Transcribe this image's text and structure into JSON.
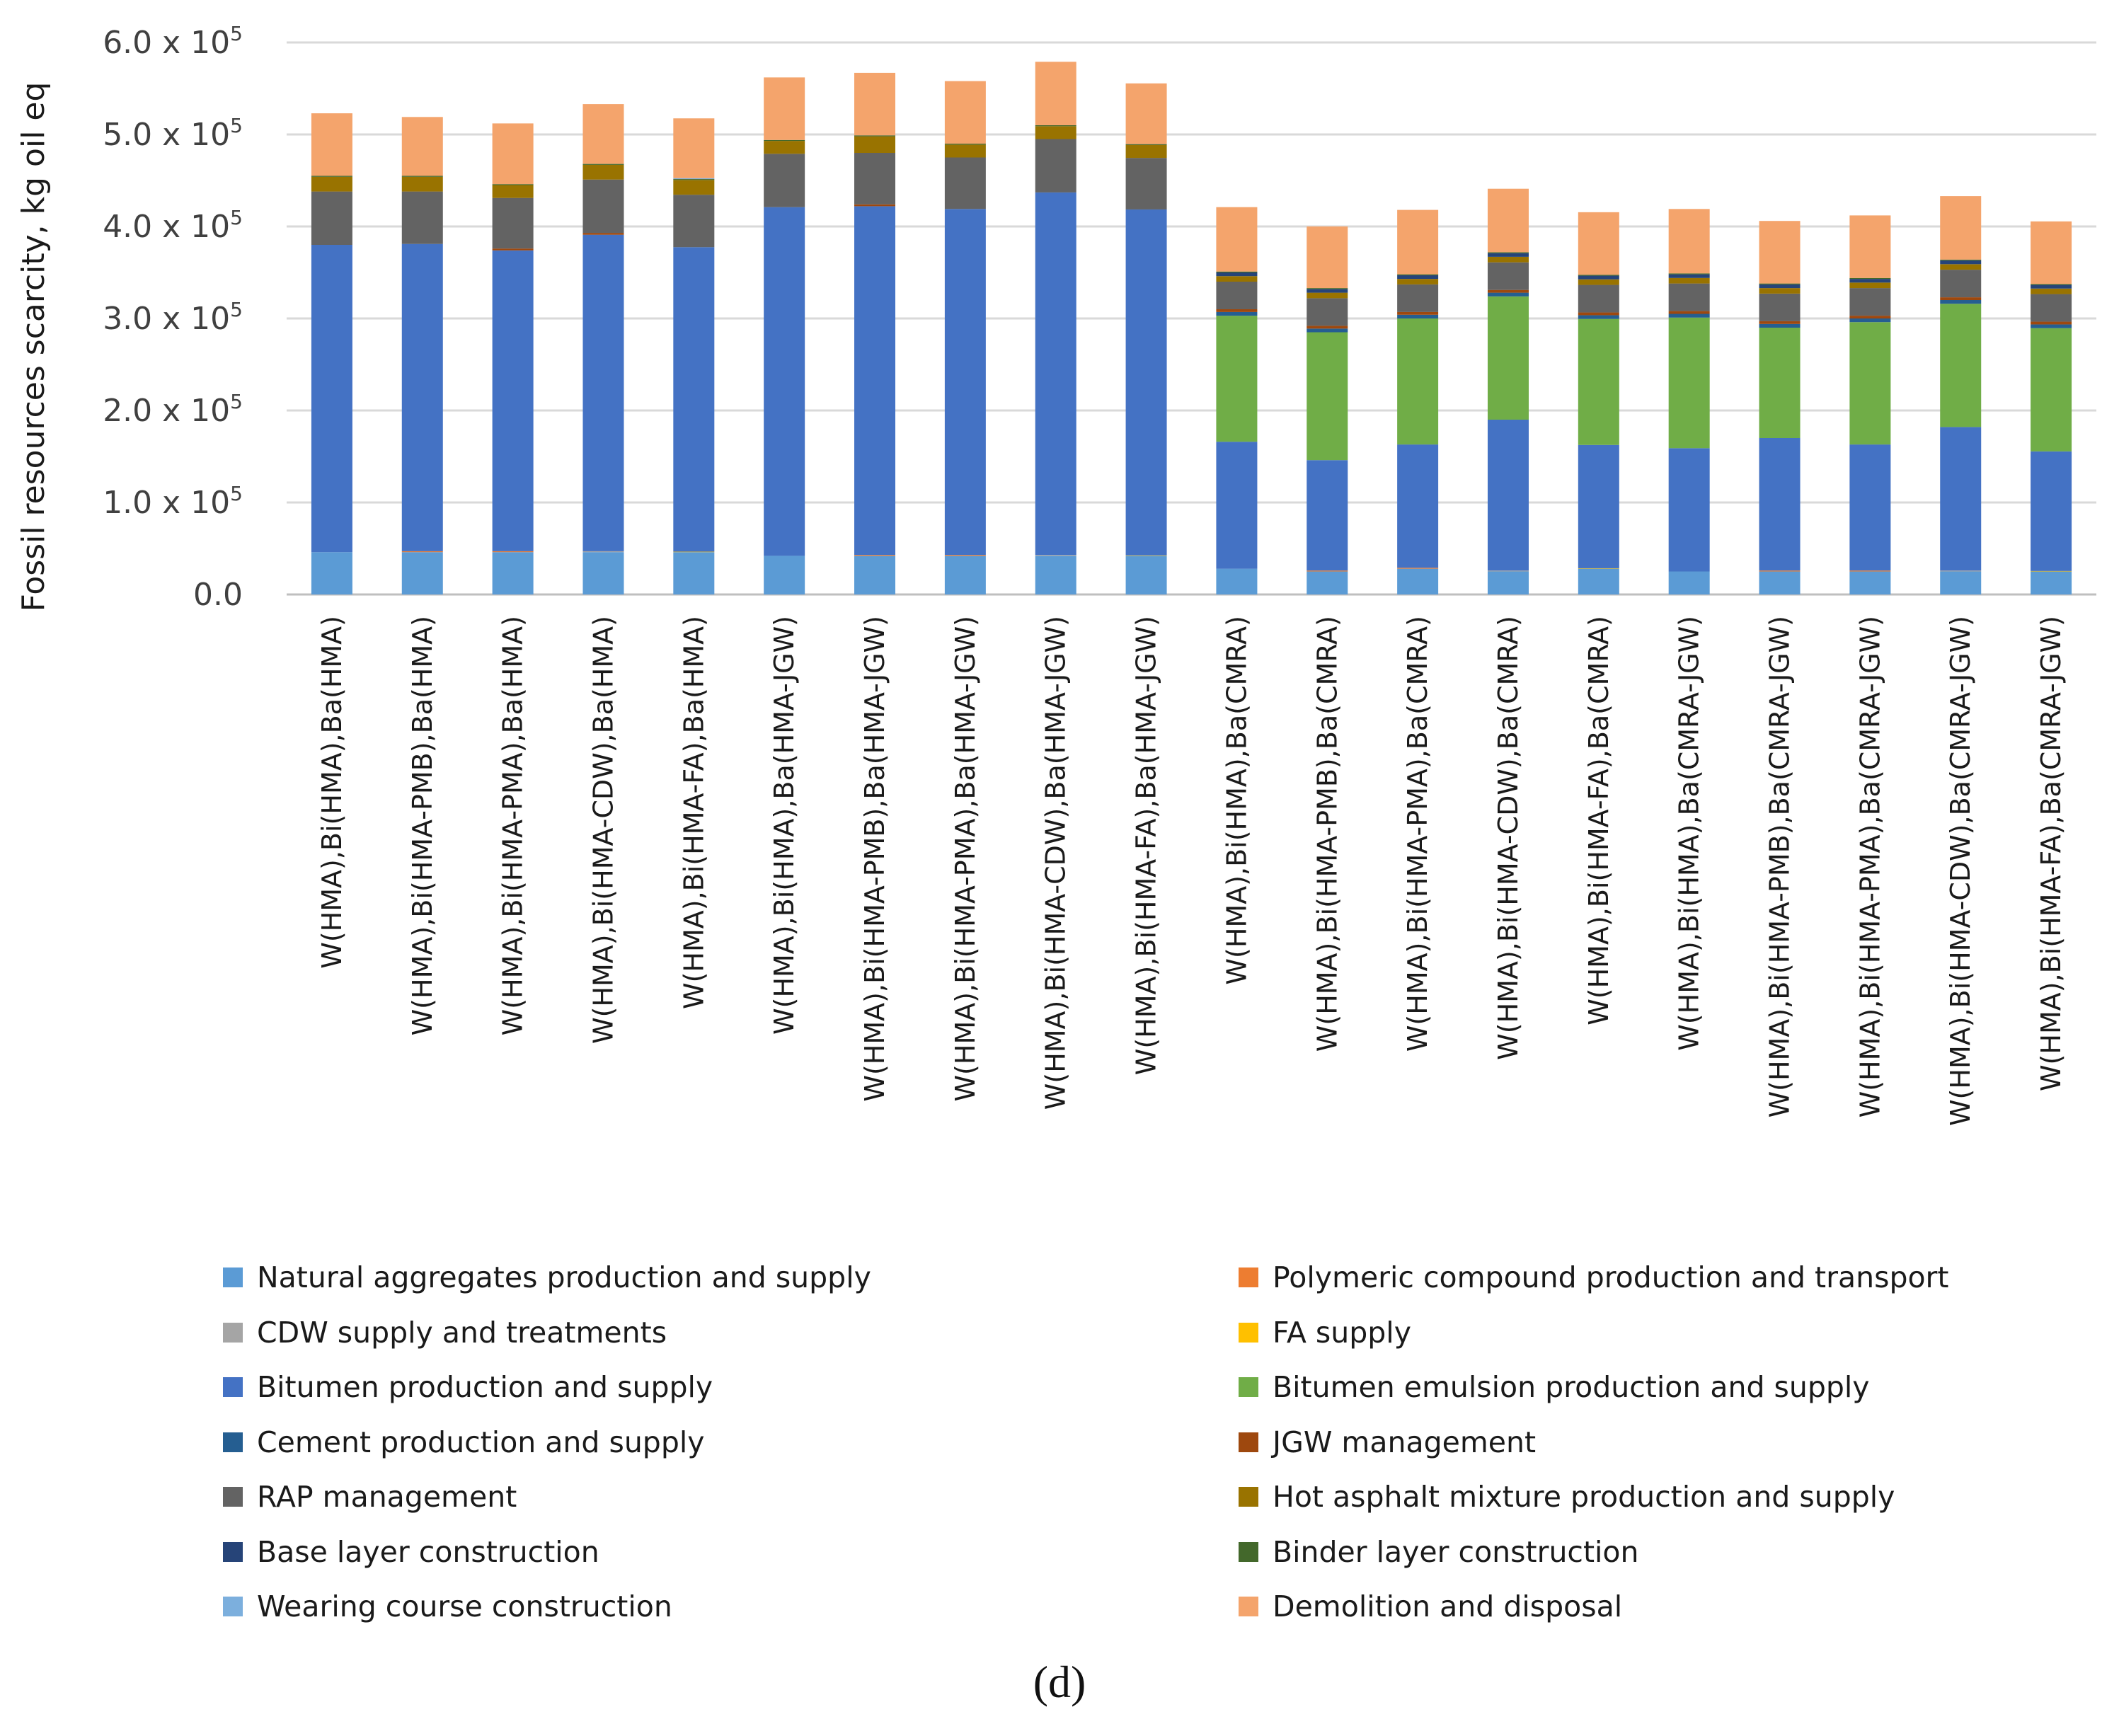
{
  "chart_data": {
    "type": "bar",
    "stacked": true,
    "ylabel": "Fossil resources scarcity, kg oil eq",
    "xlabel": "",
    "ylim": [
      0,
      600000
    ],
    "yticks": [
      {
        "value": 0,
        "label": "0.0"
      },
      {
        "value": 100000,
        "mantissa": "1.0 x 10",
        "exp": "5"
      },
      {
        "value": 200000,
        "mantissa": "2.0 x 10",
        "exp": "5"
      },
      {
        "value": 300000,
        "mantissa": "3.0 x 10",
        "exp": "5"
      },
      {
        "value": 400000,
        "mantissa": "4.0 x 10",
        "exp": "5"
      },
      {
        "value": 500000,
        "mantissa": "5.0 x 10",
        "exp": "5"
      },
      {
        "value": 600000,
        "mantissa": "6.0 x 10",
        "exp": "5"
      }
    ],
    "grid": true,
    "legend_position": "bottom",
    "categories": [
      "W(HMA),Bi(HMA),Ba(HMA)",
      "W(HMA),Bi(HMA-PMB),Ba(HMA)",
      "W(HMA),Bi(HMA-PMA),Ba(HMA)",
      "W(HMA),Bi(HMA-CDW),Ba(HMA)",
      "W(HMA),Bi(HMA-FA),Ba(HMA)",
      "W(HMA),Bi(HMA),Ba(HMA-JGW)",
      "W(HMA),Bi(HMA-PMB),Ba(HMA-JGW)",
      "W(HMA),Bi(HMA-PMA),Ba(HMA-JGW)",
      "W(HMA),Bi(HMA-CDW),Ba(HMA-JGW)",
      "W(HMA),Bi(HMA-FA),Ba(HMA-JGW)",
      "W(HMA),Bi(HMA),Ba(CMRA)",
      "W(HMA),Bi(HMA-PMB),Ba(CMRA)",
      "W(HMA),Bi(HMA-PMA),Ba(CMRA)",
      "W(HMA),Bi(HMA-CDW),Ba(CMRA)",
      "W(HMA),Bi(HMA-FA),Ba(CMRA)",
      "W(HMA),Bi(HMA),Ba(CMRA-JGW)",
      "W(HMA),Bi(HMA-PMB),Ba(CMRA-JGW)",
      "W(HMA),Bi(HMA-PMA),Ba(CMRA-JGW)",
      "W(HMA),Bi(HMA-CDW),Ba(CMRA-JGW)",
      "W(HMA),Bi(HMA-FA),Ba(CMRA-JGW)"
    ],
    "series": [
      {
        "name": "Natural aggregates production and supply",
        "color": "#5b9bd5",
        "values": [
          46000,
          46000,
          46000,
          46000,
          46000,
          42000,
          42000,
          42000,
          42000,
          42000,
          28000,
          25000,
          28000,
          25000,
          28000,
          25000,
          25000,
          25000,
          25000,
          25000
        ]
      },
      {
        "name": "Polymeric compound production and transport",
        "color": "#ed7d31",
        "values": [
          0,
          1000,
          1000,
          0,
          0,
          0,
          1000,
          1000,
          0,
          0,
          0,
          1000,
          1000,
          0,
          0,
          0,
          1000,
          1000,
          0,
          0
        ]
      },
      {
        "name": "CDW supply and treatments",
        "color": "#a5a5a5",
        "values": [
          0,
          0,
          0,
          1000,
          0,
          0,
          0,
          0,
          1000,
          0,
          0,
          0,
          0,
          1000,
          0,
          0,
          0,
          0,
          1000,
          0
        ]
      },
      {
        "name": "FA supply",
        "color": "#ffc000",
        "values": [
          0,
          0,
          0,
          0,
          500,
          0,
          0,
          0,
          0,
          500,
          0,
          0,
          0,
          0,
          500,
          0,
          0,
          0,
          0,
          500
        ]
      },
      {
        "name": "Bitumen production and supply",
        "color": "#4472c4",
        "values": [
          334000,
          334000,
          327000,
          344000,
          331000,
          379000,
          379000,
          376000,
          394000,
          376000,
          138000,
          120000,
          134000,
          164000,
          134000,
          134000,
          144000,
          137000,
          156000,
          130000
        ]
      },
      {
        "name": "Bitumen emulsion production and supply",
        "color": "#70ad47",
        "values": [
          0,
          0,
          0,
          0,
          0,
          0,
          0,
          0,
          0,
          0,
          137000,
          139000,
          137000,
          134000,
          137000,
          142000,
          120000,
          133000,
          134000,
          134000
        ]
      },
      {
        "name": "Cement production and supply",
        "color": "#255e91",
        "values": [
          0,
          0,
          0,
          0,
          0,
          0,
          0,
          0,
          0,
          0,
          4000,
          4000,
          4000,
          4000,
          4000,
          4000,
          4000,
          4000,
          4000,
          4000
        ]
      },
      {
        "name": "JGW management",
        "color": "#9e480e",
        "values": [
          0,
          0,
          2000,
          2000,
          0,
          0,
          2000,
          0,
          0,
          0,
          3000,
          3000,
          3000,
          3000,
          3000,
          3000,
          3000,
          3000,
          3000,
          3000
        ]
      },
      {
        "name": "RAP management",
        "color": "#636363",
        "values": [
          58000,
          57000,
          55000,
          58000,
          57000,
          58000,
          56000,
          56000,
          58000,
          56000,
          30000,
          30000,
          30000,
          30000,
          30000,
          30000,
          30000,
          30000,
          30000,
          30000
        ]
      },
      {
        "name": "Hot asphalt mixture production and supply",
        "color": "#997300",
        "values": [
          16000,
          16000,
          14000,
          16000,
          16000,
          14000,
          18000,
          14000,
          14000,
          14000,
          6000,
          6000,
          6000,
          6000,
          6000,
          6000,
          6000,
          6000,
          6000,
          6000
        ]
      },
      {
        "name": "Base layer construction",
        "color": "#264478",
        "values": [
          0,
          0,
          0,
          0,
          0,
          0,
          0,
          0,
          0,
          0,
          4000,
          4000,
          4000,
          4000,
          4000,
          4000,
          4000,
          4000,
          4000,
          4000
        ]
      },
      {
        "name": "Binder layer construction",
        "color": "#43682b",
        "values": [
          1000,
          1000,
          1000,
          1000,
          1000,
          1000,
          1000,
          1000,
          1000,
          1000,
          1000,
          1000,
          1000,
          1000,
          1000,
          1000,
          1000,
          1000,
          1000,
          1000
        ]
      },
      {
        "name": "Wearing course construction",
        "color": "#7cafdd",
        "values": [
          0,
          0,
          0,
          0,
          1000,
          0,
          0,
          0,
          0,
          0,
          0,
          0,
          0,
          0,
          0,
          0,
          0,
          0,
          0,
          0
        ]
      },
      {
        "name": "Demolition and disposal",
        "color": "#f4a46c",
        "values": [
          68000,
          64000,
          66000,
          65000,
          65000,
          68000,
          68000,
          68000,
          69000,
          66000,
          70000,
          67000,
          70000,
          69000,
          68000,
          70000,
          68000,
          68000,
          69000,
          68000
        ]
      }
    ],
    "legend_order": [
      "Natural aggregates production and supply",
      "Polymeric compound production and transport",
      "CDW supply and treatments",
      "FA supply",
      "Bitumen production and supply",
      "Bitumen emulsion production and supply",
      "Cement production and supply",
      "JGW management",
      "RAP management",
      "Hot asphalt mixture production and supply",
      "Base layer construction",
      "Binder layer construction",
      "Wearing course construction",
      "Demolition and disposal"
    ]
  },
  "caption": "(d)"
}
